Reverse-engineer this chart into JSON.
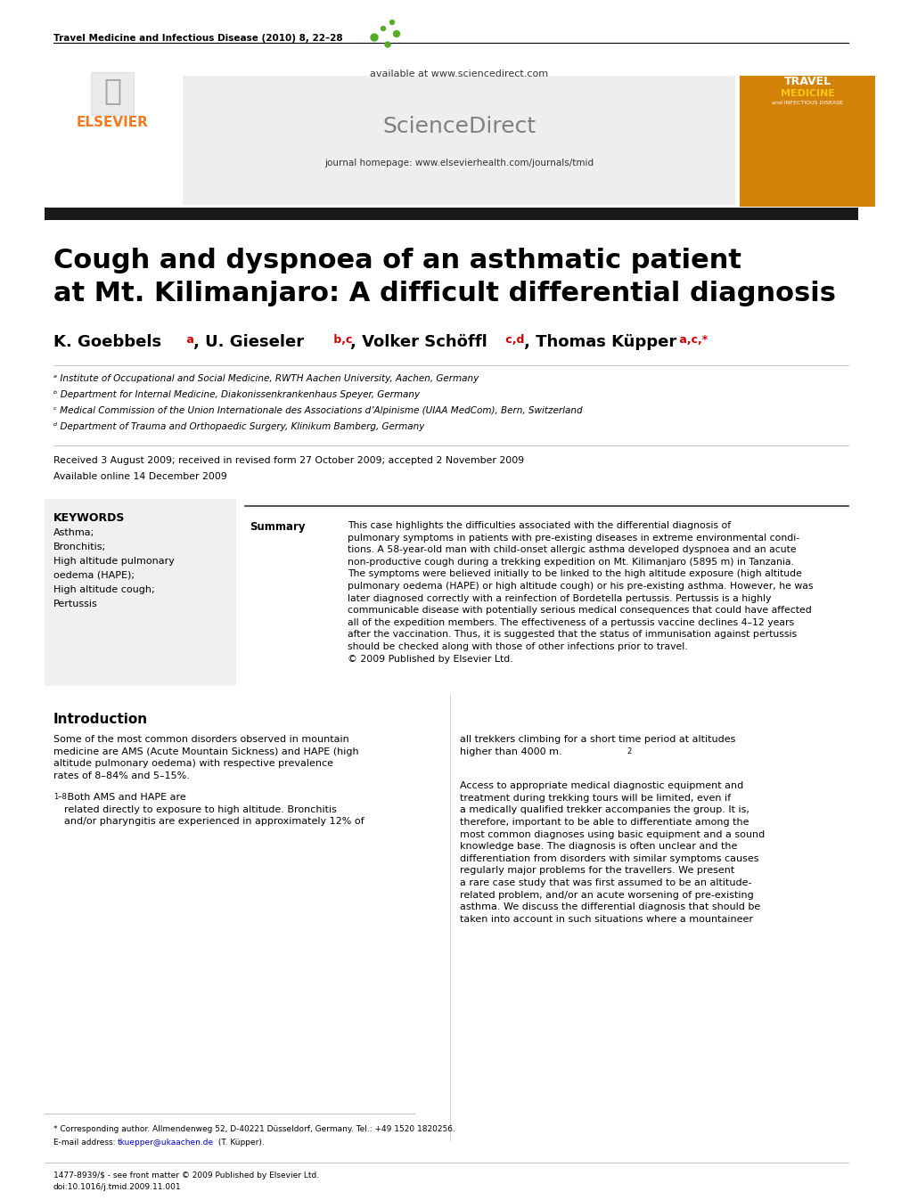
{
  "journal_header": "Travel Medicine and Infectious Disease (2010) 8, 22–28",
  "available_text": "available at www.sciencedirect.com",
  "journal_homepage": "journal homepage: www.elsevierhealth.com/journals/tmid",
  "title_line1": "Cough and dyspnoea of an asthmatic patient",
  "title_line2": "at Mt. Kilimanjaro: A difficult differential diagnosis",
  "authors": "K. Goebbels ᵃ, U. Gieseler ᵇ,ᶜ, Volker Schöffl ᶜ,ᵈ, Thomas Küpper ᵃ,ᶜ,*",
  "affil_a": "ᵃ Institute of Occupational and Social Medicine, RWTH Aachen University, Aachen, Germany",
  "affil_b": "ᵇ Department for Internal Medicine, Diakonissenkrankenhaus Speyer, Germany",
  "affil_c": "ᶜ Medical Commission of the Union Internationale des Associations d’Alpinisme (UIAA MedCom), Bern, Switzerland",
  "affil_d": "ᵈ Department of Trauma and Orthopaedic Surgery, Klinikum Bamberg, Germany",
  "received": "Received 3 August 2009; received in revised form 27 October 2009; accepted 2 November 2009",
  "available_online": "Available online 14 December 2009",
  "keywords_title": "KEYWORDS",
  "keywords": [
    "Asthma;",
    "Bronchitis;",
    "High altitude pulmonary",
    "oedema (HAPE);",
    "High altitude cough;",
    "Pertussis"
  ],
  "summary_label": "Summary",
  "summary_text": "This case highlights the difficulties associated with the differential diagnosis of pulmonary symptoms in patients with pre-existing diseases in extreme environmental conditions. A 58-year-old man with child-onset allergic asthma developed dyspnoea and an acute non-productive cough during a trekking expedition on Mt. Kilimanjaro (5895 m) in Tanzania. The symptoms were believed initially to be linked to the high altitude exposure (high altitude pulmonary oedema (HAPE) or high altitude cough) or his pre-existing asthma. However, he was later diagnosed correctly with a reinfection of Bordetella pertussis. Pertussis is a highly communicable disease with potentially serious medical consequences that could have affected all of the expedition members. The effectiveness of a pertussis vaccine declines 4–12 years after the vaccination. Thus, it is suggested that the status of immunisation against pertussis should be checked along with those of other infections prior to travel.\n© 2009 Published by Elsevier Ltd.",
  "intro_title": "Introduction",
  "intro_text1": "Some of the most common disorders observed in mountain medicine are AMS (Acute Mountain Sickness) and HAPE (high altitude pulmonary oedema) with respective prevalence rates of 8–84% and 5–15%.",
  "intro_superscript1": "1–8",
  "intro_text2": " Both AMS and HAPE are related directly to exposure to high altitude. Bronchitis and/or pharyngitis are experienced in approximately 12% of",
  "intro_col2_text1": "all trekkers climbing for a short time period at altitudes higher than 4000 m.",
  "intro_col2_superscript1": "2",
  "intro_col2_text2": "\n\nAccess to appropriate medical diagnostic equipment and treatment during trekking tours will be limited, even if a medically qualified trekker accompanies the group. It is, therefore, important to be able to differentiate among the most common diagnoses using basic equipment and a sound knowledge base. The diagnosis is often unclear and the differentiation from disorders with similar symptoms causes regularly major problems for the travellers. We present a rare case study that was first assumed to be an altitude-related problem, and/or an acute worsening of pre-existing asthma. We discuss the differential diagnosis that should be taken into account in such situations where a mountaineer",
  "footnote_star": "* Corresponding author. Allmendenweg 52, D-40221 Düsseldorf, Germany. Tel.: +49 1520 1820256.",
  "footnote_email_label": "E-mail address:",
  "footnote_email": "tkuepper@ukaachen.de",
  "footnote_email_rest": " (T. Küpper).",
  "footer_issn": "1477-8939/$ - see front matter © 2009 Published by Elsevier Ltd.",
  "footer_doi": "doi:10.1016/j.tmid.2009.11.001",
  "bg_color": "#ffffff",
  "header_bg": "#f0f0f0",
  "keyword_bg": "#f0f0f0",
  "black_bar_color": "#1a1a1a",
  "elsevier_orange": "#f47920",
  "link_blue": "#0000ff",
  "gray_text": "#555555"
}
